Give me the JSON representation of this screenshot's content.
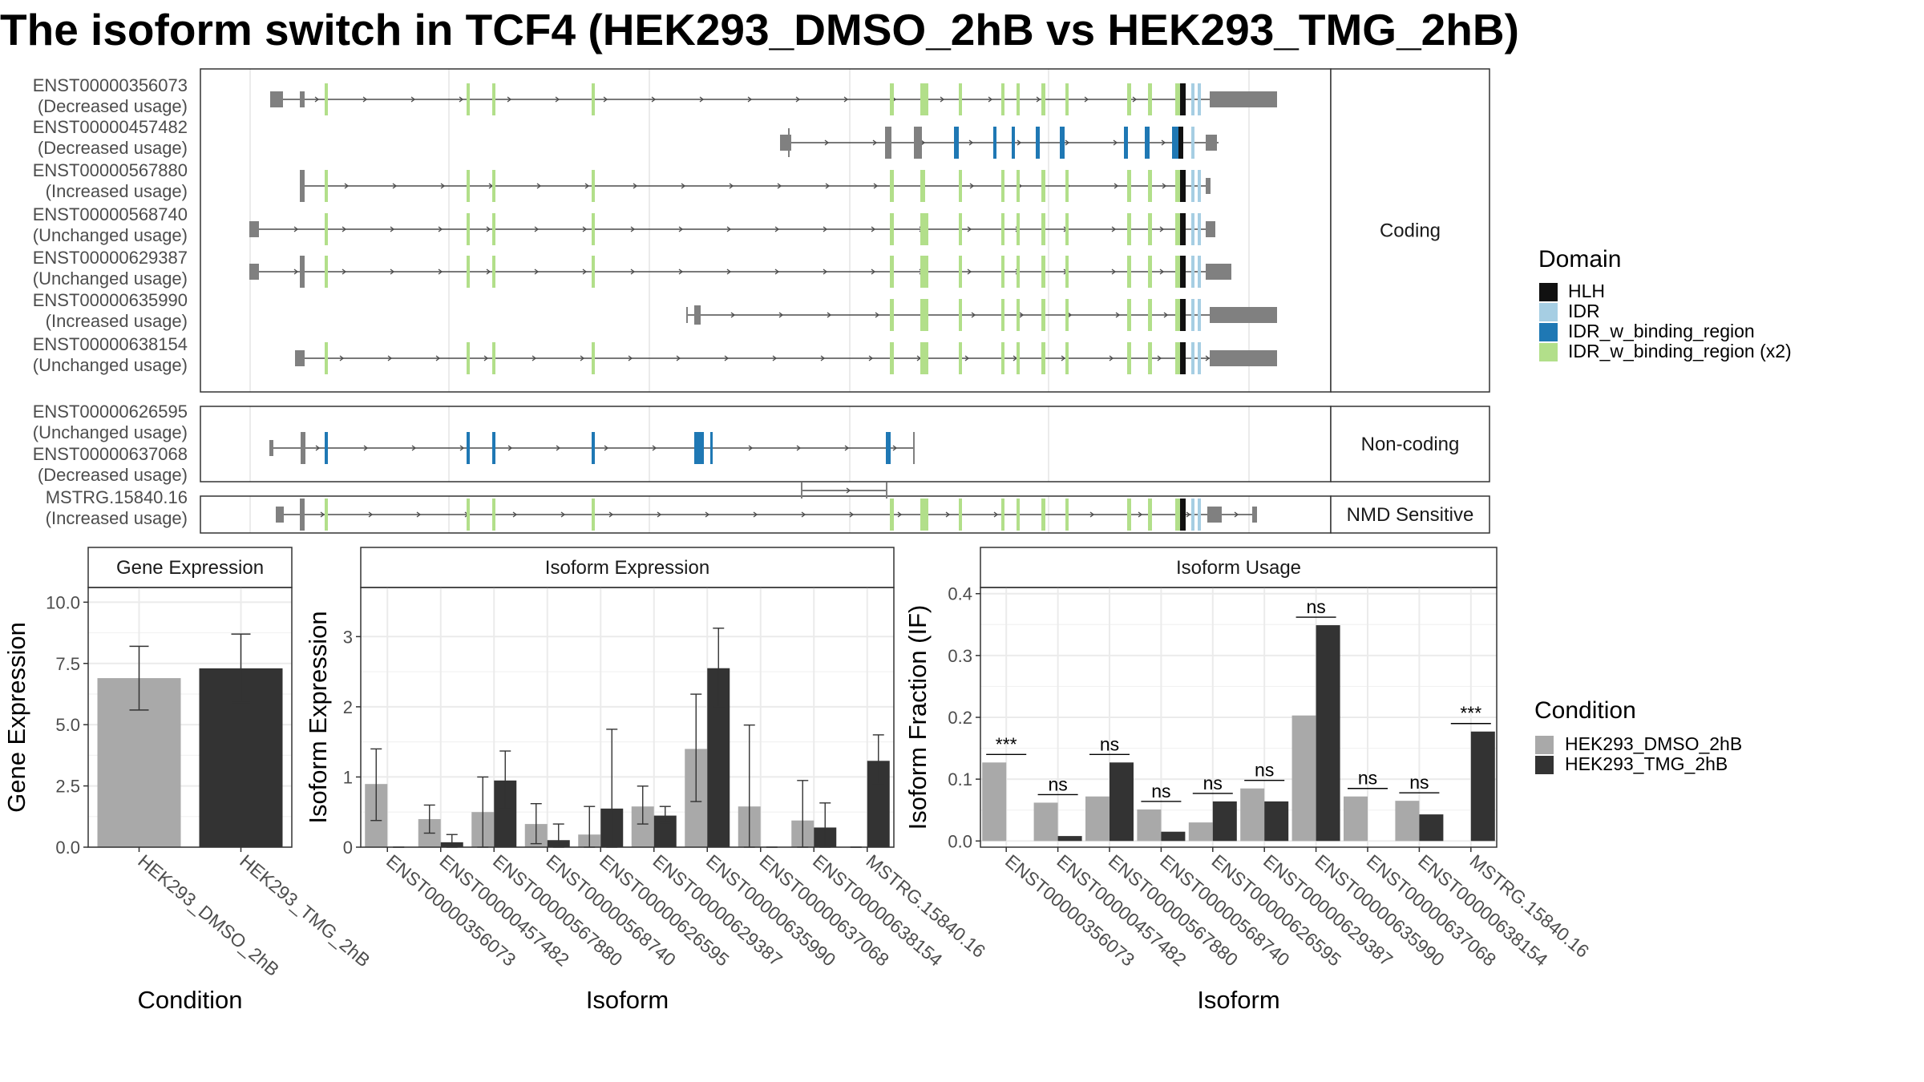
{
  "title": "The isoform switch in TCF4 (HEK293_DMSO_2hB vs HEK293_TMG_2hB)",
  "structure": {
    "groups": [
      {
        "strip": "Coding",
        "transcripts": [
          {
            "id": "ENST00000356073",
            "usage": "(Decreased usage)"
          },
          {
            "id": "ENST00000457482",
            "usage": "(Decreased usage)"
          },
          {
            "id": "ENST00000567880",
            "usage": "(Increased usage)"
          },
          {
            "id": "ENST00000568740",
            "usage": "(Unchanged usage)"
          },
          {
            "id": "ENST00000629387",
            "usage": "(Unchanged usage)"
          },
          {
            "id": "ENST00000635990",
            "usage": "(Increased usage)"
          },
          {
            "id": "ENST00000638154",
            "usage": "(Unchanged usage)"
          }
        ]
      },
      {
        "strip": "Non-coding",
        "transcripts": [
          {
            "id": "ENST00000626595",
            "usage": "(Unchanged usage)"
          },
          {
            "id": "ENST00000637068",
            "usage": "(Decreased usage)"
          }
        ]
      },
      {
        "strip": "NMD Sensitive",
        "transcripts": [
          {
            "id": "MSTRG.15840.16",
            "usage": "(Increased usage)"
          }
        ]
      }
    ]
  },
  "legends": {
    "domain": {
      "title": "Domain",
      "items": [
        {
          "label": "HLH",
          "color": "#111111"
        },
        {
          "label": "IDR",
          "color": "#a6cee3"
        },
        {
          "label": "IDR_w_binding_region",
          "color": "#1f78b4"
        },
        {
          "label": "IDR_w_binding_region (x2)",
          "color": "#b2df8a"
        }
      ]
    },
    "condition": {
      "title": "Condition",
      "items": [
        {
          "label": "HEK293_DMSO_2hB",
          "color": "#a9a9a9"
        },
        {
          "label": "HEK293_TMG_2hB",
          "color": "#333333"
        }
      ]
    }
  },
  "chart_data": [
    {
      "type": "bar",
      "panel": "Gene Expression",
      "xlabel": "Condition",
      "ylabel": "Gene Expression",
      "ylim": [
        0,
        10.6
      ],
      "yticks": [
        "0.0",
        "2.5",
        "5.0",
        "7.5",
        "10.0"
      ],
      "categories": [
        "HEK293_DMSO_2hB",
        "HEK293_TMG_2hB"
      ],
      "values": [
        6.9,
        7.3
      ],
      "errors": [
        [
          5.6,
          8.2
        ],
        [
          5.9,
          8.7
        ]
      ]
    },
    {
      "type": "bar",
      "panel": "Isoform Expression",
      "xlabel": "Isoform",
      "ylabel": "Isoform Expression",
      "ylim": [
        0,
        3.7
      ],
      "yticks": [
        "0",
        "1",
        "2",
        "3"
      ],
      "categories": [
        "ENST00000356073",
        "ENST00000457482",
        "ENST00000567880",
        "ENST00000568740",
        "ENST00000626595",
        "ENST00000629387",
        "ENST00000635990",
        "ENST00000637068",
        "ENST00000638154",
        "MSTRG.15840.16"
      ],
      "series": [
        {
          "name": "HEK293_DMSO_2hB",
          "values": [
            0.9,
            0.4,
            0.5,
            0.33,
            0.18,
            0.58,
            1.4,
            0.58,
            0.38,
            0.0
          ],
          "errors": [
            [
              0.38,
              1.4
            ],
            [
              0.2,
              0.6
            ],
            [
              0.0,
              1.0
            ],
            [
              0.05,
              0.62
            ],
            [
              0.0,
              0.58
            ],
            [
              0.33,
              0.87
            ],
            [
              0.65,
              2.18
            ],
            [
              0.0,
              1.74
            ],
            [
              0.0,
              0.95
            ],
            [
              0.0,
              0.0
            ]
          ]
        },
        {
          "name": "HEK293_TMG_2hB",
          "values": [
            0.0,
            0.07,
            0.95,
            0.1,
            0.55,
            0.45,
            2.55,
            0.0,
            0.28,
            1.23
          ],
          "errors": [
            [
              0.0,
              0.0
            ],
            [
              0.0,
              0.18
            ],
            [
              0.55,
              1.37
            ],
            [
              0.0,
              0.33
            ],
            [
              0.0,
              1.68
            ],
            [
              0.35,
              0.58
            ],
            [
              2.0,
              3.12
            ],
            [
              0.0,
              0.0
            ],
            [
              0.0,
              0.63
            ],
            [
              0.9,
              1.6
            ]
          ]
        }
      ]
    },
    {
      "type": "bar",
      "panel": "Isoform Usage",
      "xlabel": "Isoform",
      "ylabel": "Isoform Fraction (IF)",
      "ylim": [
        -0.01,
        0.41
      ],
      "yticks": [
        "0.0",
        "0.1",
        "0.2",
        "0.3",
        "0.4"
      ],
      "categories": [
        "ENST00000356073",
        "ENST00000457482",
        "ENST00000567880",
        "ENST00000568740",
        "ENST00000626595",
        "ENST00000629387",
        "ENST00000635990",
        "ENST00000637068",
        "ENST00000638154",
        "MSTRG.15840.16"
      ],
      "series": [
        {
          "name": "HEK293_DMSO_2hB",
          "values": [
            0.127,
            0.062,
            0.072,
            0.051,
            0.03,
            0.085,
            0.203,
            0.072,
            0.065,
            0.0
          ]
        },
        {
          "name": "HEK293_TMG_2hB",
          "values": [
            0.0,
            0.008,
            0.127,
            0.015,
            0.064,
            0.064,
            0.349,
            0.0,
            0.043,
            0.177
          ]
        }
      ],
      "significance": [
        "***",
        "ns",
        "ns",
        "ns",
        "ns",
        "ns",
        "ns",
        "ns",
        "ns",
        "***"
      ]
    }
  ]
}
